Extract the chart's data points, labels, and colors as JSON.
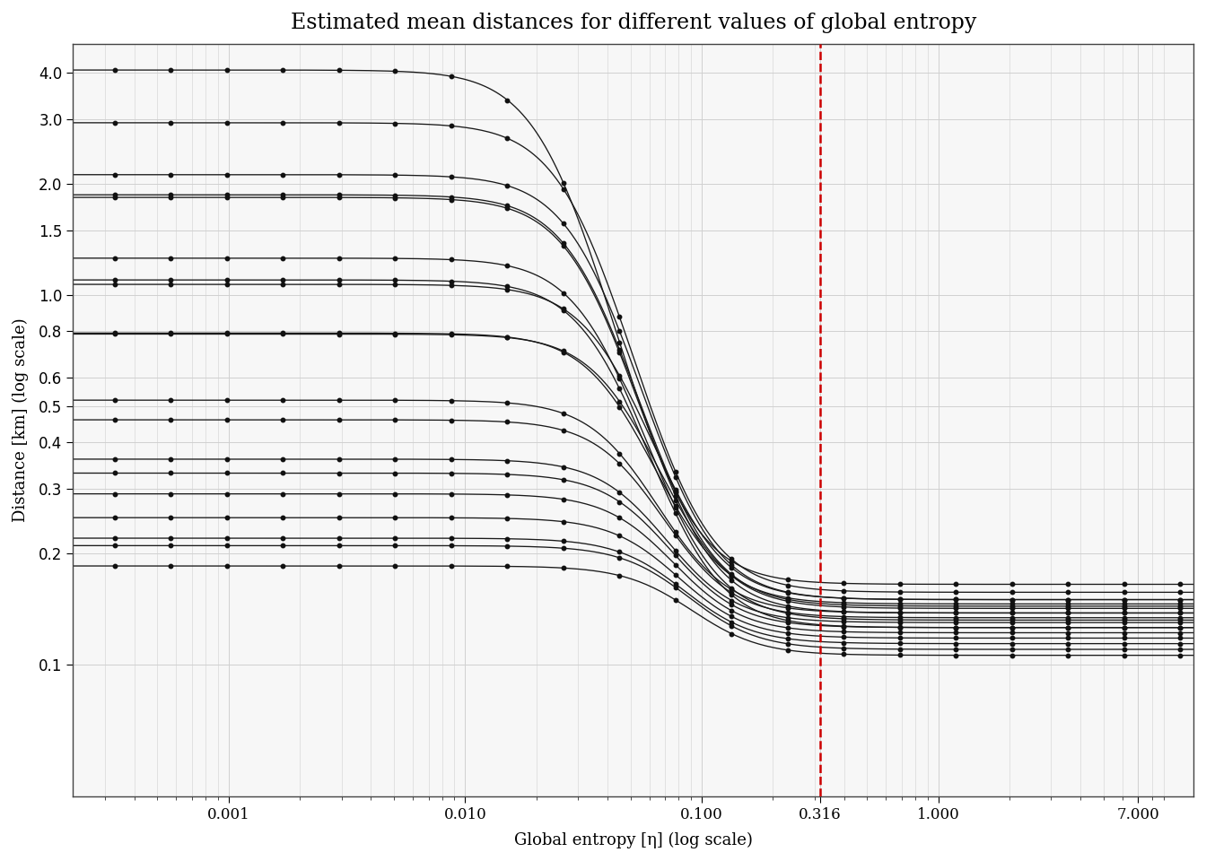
{
  "title": "Estimated mean distances for different values of global entropy",
  "xlabel": "Global entropy [η] (log scale)",
  "ylabel": "Distance [km] (log scale)",
  "vline_x": 0.316,
  "vline_color": "#cc0000",
  "background_color": "#ffffff",
  "plot_bg_color": "#f7f7f7",
  "grid_color": "#d0d0d0",
  "xlim": [
    0.00022,
    12.0
  ],
  "ylim": [
    0.044,
    4.8
  ],
  "line_color": "#1a1a1a",
  "marker_color": "#111111",
  "marker_size": 3.2,
  "line_width": 0.95,
  "curve_start_values": [
    4.07,
    2.93,
    2.12,
    1.87,
    1.84,
    1.26,
    1.1,
    1.07,
    0.79,
    0.785,
    0.52,
    0.46,
    0.36,
    0.33,
    0.29,
    0.25,
    0.22,
    0.21,
    0.185
  ],
  "curve_end_values": [
    0.165,
    0.157,
    0.15,
    0.144,
    0.138,
    0.132,
    0.126,
    0.15,
    0.146,
    0.142,
    0.138,
    0.134,
    0.13,
    0.126,
    0.122,
    0.118,
    0.114,
    0.11,
    0.106
  ],
  "n_curves": 19,
  "log_transition_centers": [
    -1.6,
    -1.5,
    -1.45,
    -1.45,
    -1.45,
    -1.4,
    -1.38,
    -1.35,
    -1.32,
    -1.3,
    -1.28,
    -1.25,
    -1.22,
    -1.2,
    -1.18,
    -1.15,
    -1.12,
    -1.1,
    -1.08
  ],
  "sigmoid_steepness": 2.2
}
